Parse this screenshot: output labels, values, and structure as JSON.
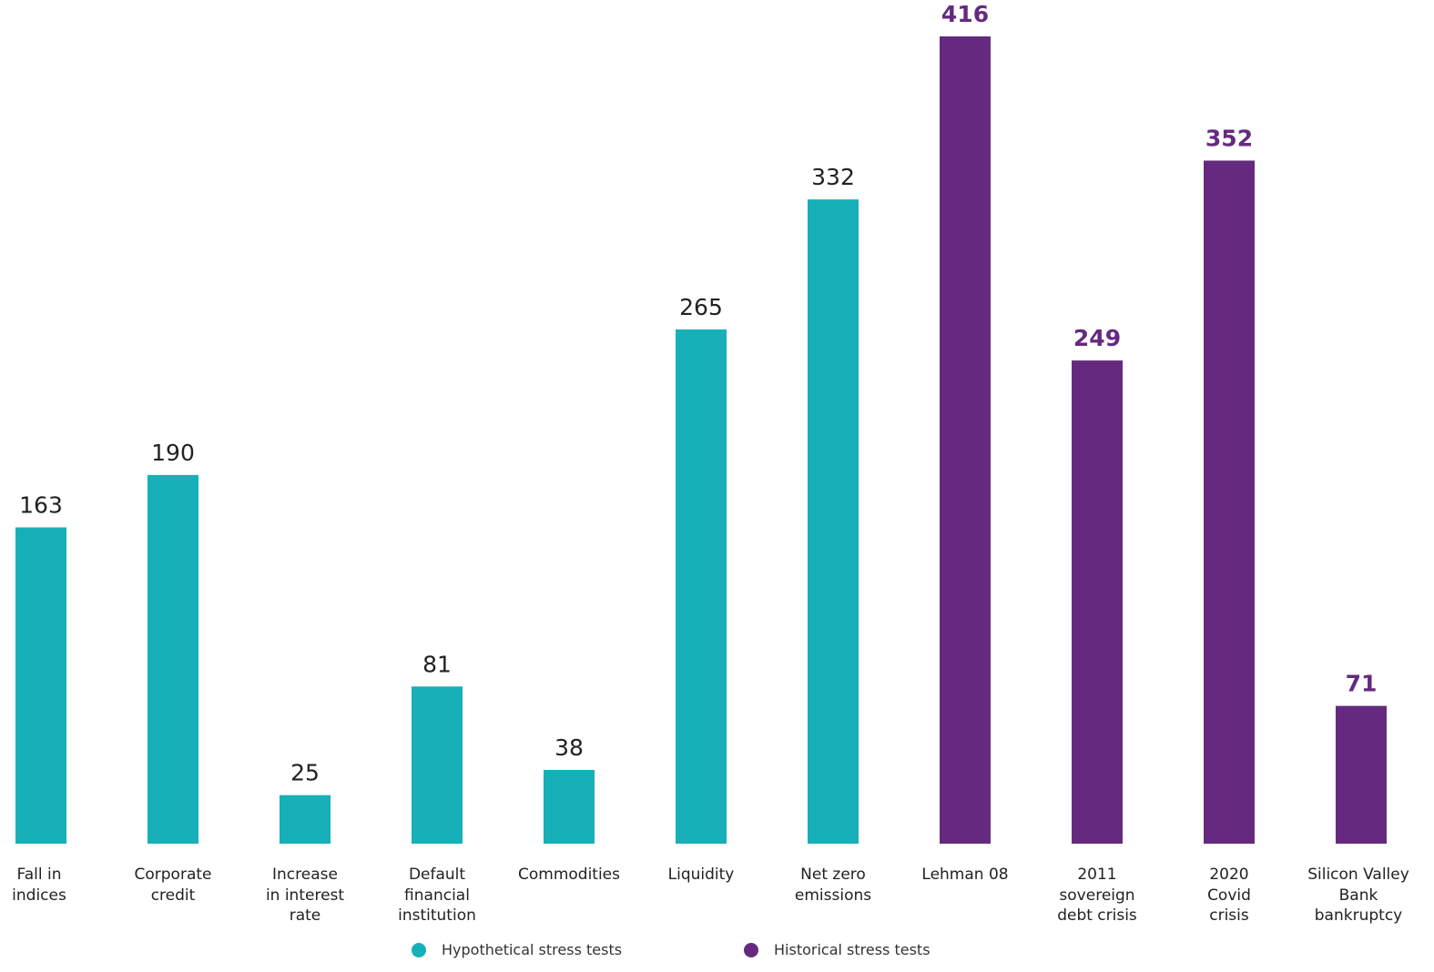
{
  "chart_data": {
    "type": "bar",
    "title": "",
    "xlabel": "",
    "ylabel": "",
    "ylim": [
      0,
      416
    ],
    "grid": false,
    "categories": [
      "Fall in\nindices",
      "Corporate\ncredit",
      "Increase\nin interest\nrate",
      "Default\nfinancial\ninstitution",
      "Commodities",
      "Liquidity",
      "Net zero\nemissions",
      "Lehman 08",
      "2011\nsovereign\ndebt crisis",
      "2020\nCovid\ncrisis",
      "Silicon Valley\nBank\nbankruptcy"
    ],
    "values": [
      163,
      190,
      25,
      81,
      38,
      265,
      332,
      416,
      249,
      352,
      71
    ],
    "groups": [
      "hypothetical",
      "hypothetical",
      "hypothetical",
      "hypothetical",
      "hypothetical",
      "hypothetical",
      "hypothetical",
      "historical",
      "historical",
      "historical",
      "historical"
    ],
    "series": [
      {
        "name": "Hypothetical stress tests",
        "key": "hypothetical",
        "color": "#17b0b9"
      },
      {
        "name": "Historical stress tests",
        "key": "historical",
        "color": "#652a7f"
      }
    ],
    "legend_position": "bottom"
  }
}
